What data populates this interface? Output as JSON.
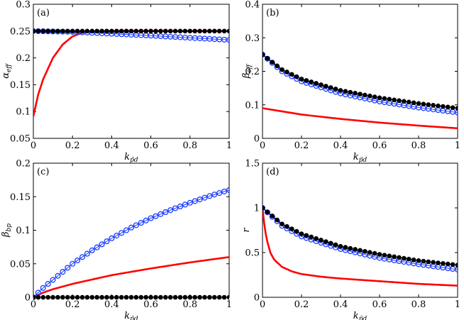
{
  "chart_data": [
    {
      "type": "line",
      "panel_label": "(a)",
      "xlabel": {
        "main": "k",
        "sub": "p̃d"
      },
      "ylabel": {
        "main": "α",
        "sub": "eff"
      },
      "xlim": [
        0,
        1
      ],
      "ylim": [
        0.05,
        0.3
      ],
      "xticks": [
        0,
        0.2,
        0.4,
        0.6,
        0.8,
        1
      ],
      "xtick_labels": [
        "0",
        "0.2",
        "0.4",
        "0.6",
        "0.8",
        "1"
      ],
      "yticks": [
        0.05,
        0.1,
        0.15,
        0.2,
        0.25,
        0.3
      ],
      "ytick_labels": [
        "0.05",
        "0.1",
        "0.15",
        "0.2",
        "0.25",
        "0.3"
      ],
      "series": [
        {
          "name": "black",
          "color": "#000000",
          "marker": "dot",
          "x": [
            0,
            1
          ],
          "y": [
            0.25,
            0.25
          ]
        },
        {
          "name": "blue",
          "color": "#1a3cff",
          "marker": "circle",
          "x": [
            0,
            0.2,
            0.4,
            0.6,
            0.8,
            1
          ],
          "y": [
            0.25,
            0.2485,
            0.245,
            0.2415,
            0.2375,
            0.2335
          ]
        },
        {
          "name": "red",
          "color": "#ff0000",
          "marker": "none",
          "x": [
            0,
            0.025,
            0.05,
            0.1,
            0.15,
            0.2,
            0.25,
            0.3,
            0.4,
            1
          ],
          "y": [
            0.091,
            0.132,
            0.16,
            0.2,
            0.225,
            0.24,
            0.247,
            0.249,
            0.25,
            0.25
          ]
        }
      ]
    },
    {
      "type": "line",
      "panel_label": "(b)",
      "xlabel": {
        "main": "k",
        "sub": "p̃d"
      },
      "ylabel": {
        "main": "β",
        "sub": "eff"
      },
      "xlim": [
        0,
        1
      ],
      "ylim": [
        0,
        0.4
      ],
      "xticks": [
        0,
        0.2,
        0.4,
        0.6,
        0.8,
        1
      ],
      "xtick_labels": [
        "0",
        "0.2",
        "0.4",
        "0.6",
        "0.8",
        "1"
      ],
      "yticks": [
        0,
        0.1,
        0.2,
        0.3,
        0.4
      ],
      "ytick_labels": [
        "0",
        "0.1",
        "0.2",
        "0.3",
        "0.4"
      ],
      "series": [
        {
          "name": "black",
          "color": "#000000",
          "marker": "dot",
          "x": [
            0,
            0.1,
            0.2,
            0.4,
            0.6,
            0.8,
            1
          ],
          "y": [
            0.25,
            0.205,
            0.177,
            0.143,
            0.121,
            0.104,
            0.09
          ]
        },
        {
          "name": "blue",
          "color": "#1a3cff",
          "marker": "circle",
          "x": [
            0,
            0.1,
            0.2,
            0.4,
            0.6,
            0.8,
            1
          ],
          "y": [
            0.25,
            0.2,
            0.17,
            0.134,
            0.11,
            0.092,
            0.077
          ]
        },
        {
          "name": "red",
          "color": "#ff0000",
          "marker": "none",
          "x": [
            0,
            0.2,
            0.4,
            0.6,
            0.8,
            1
          ],
          "y": [
            0.09,
            0.071,
            0.058,
            0.047,
            0.038,
            0.03
          ]
        }
      ]
    },
    {
      "type": "line",
      "panel_label": "(c)",
      "xlabel": {
        "main": "k",
        "sub": "p̃d"
      },
      "ylabel": {
        "main": "β",
        "sub": "bp"
      },
      "xlim": [
        0,
        1
      ],
      "ylim": [
        0,
        0.2
      ],
      "xticks": [
        0,
        0.2,
        0.4,
        0.6,
        0.8,
        1
      ],
      "xtick_labels": [
        "0",
        "0.2",
        "0.4",
        "0.6",
        "0.8",
        "1"
      ],
      "yticks": [
        0,
        0.05,
        0.1,
        0.15,
        0.2
      ],
      "ytick_labels": [
        "0",
        "0.05",
        "0.1",
        "0.15",
        "0.2"
      ],
      "series": [
        {
          "name": "black",
          "color": "#000000",
          "marker": "dot",
          "x": [
            0,
            1
          ],
          "y": [
            0,
            0
          ]
        },
        {
          "name": "blue",
          "color": "#1a3cff",
          "marker": "circle",
          "x": [
            0,
            0.05,
            0.1,
            0.2,
            0.3,
            0.4,
            0.5,
            0.6,
            0.7,
            0.8,
            0.9,
            1
          ],
          "y": [
            0,
            0.014,
            0.026,
            0.05,
            0.07,
            0.088,
            0.104,
            0.118,
            0.13,
            0.141,
            0.151,
            0.16
          ]
        },
        {
          "name": "red",
          "color": "#ff0000",
          "marker": "none",
          "x": [
            0,
            0.05,
            0.1,
            0.2,
            0.4,
            0.6,
            0.8,
            1
          ],
          "y": [
            0,
            0.007,
            0.012,
            0.02,
            0.033,
            0.043,
            0.052,
            0.06
          ]
        }
      ]
    },
    {
      "type": "line",
      "panel_label": "(d)",
      "xlabel": {
        "main": "k",
        "sub": "p̃d"
      },
      "ylabel": {
        "main": "r",
        "sub": ""
      },
      "xlim": [
        0,
        1
      ],
      "ylim": [
        0,
        1.5
      ],
      "xticks": [
        0,
        0.2,
        0.4,
        0.6,
        0.8,
        1
      ],
      "xtick_labels": [
        "0",
        "0.2",
        "0.4",
        "0.6",
        "0.8",
        "1"
      ],
      "yticks": [
        0,
        0.5,
        1,
        1.5
      ],
      "ytick_labels": [
        "0",
        "0.5",
        "1",
        "1.5"
      ],
      "series": [
        {
          "name": "black",
          "color": "#000000",
          "marker": "dot",
          "x": [
            0,
            0.1,
            0.2,
            0.4,
            0.6,
            0.8,
            1
          ],
          "y": [
            1,
            0.82,
            0.71,
            0.57,
            0.48,
            0.41,
            0.36
          ]
        },
        {
          "name": "blue",
          "color": "#1a3cff",
          "marker": "circle",
          "x": [
            0,
            0.1,
            0.2,
            0.4,
            0.6,
            0.8,
            1
          ],
          "y": [
            1,
            0.8,
            0.68,
            0.54,
            0.44,
            0.37,
            0.31
          ]
        },
        {
          "name": "red",
          "color": "#ff0000",
          "marker": "none",
          "x": [
            0,
            0.01,
            0.02,
            0.04,
            0.06,
            0.1,
            0.15,
            0.2,
            0.3,
            0.4,
            0.6,
            0.8,
            1
          ],
          "y": [
            1,
            0.8,
            0.66,
            0.5,
            0.42,
            0.34,
            0.29,
            0.26,
            0.23,
            0.21,
            0.18,
            0.15,
            0.13
          ]
        }
      ]
    }
  ]
}
